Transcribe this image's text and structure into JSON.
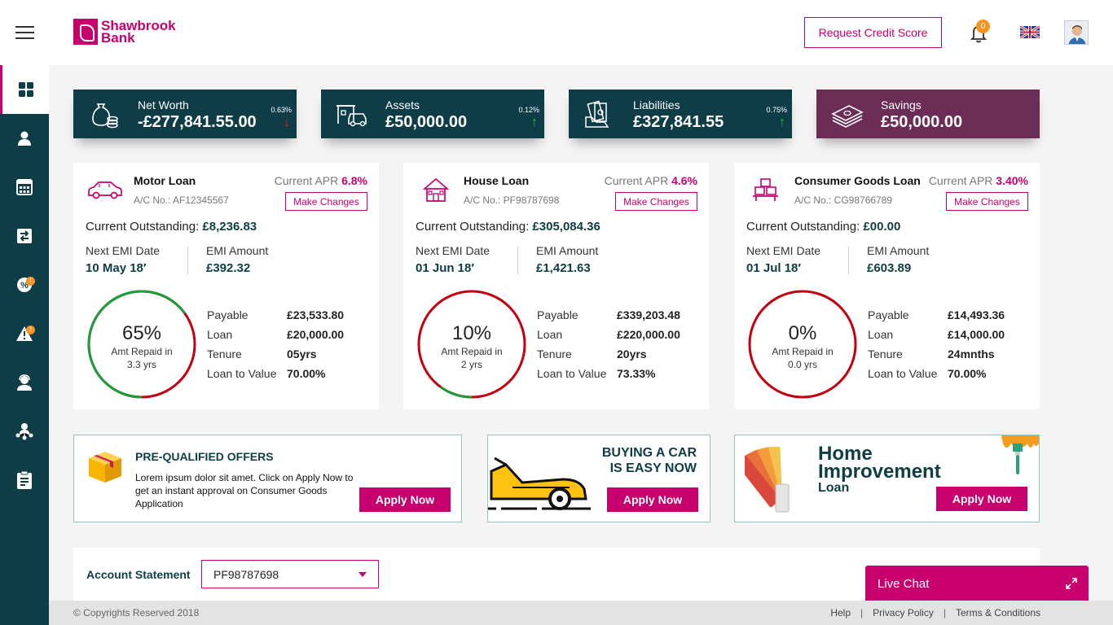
{
  "header": {
    "logo_line1": "Shawbrook",
    "logo_line2": "Bank",
    "request_credit_score": "Request Credit Score",
    "notification_count": "0"
  },
  "sidebar": {
    "items": [
      {
        "icon": "dashboard-icon"
      },
      {
        "icon": "user-icon"
      },
      {
        "icon": "calculator-icon"
      },
      {
        "icon": "transfer-icon"
      },
      {
        "icon": "offers-icon",
        "badge": "1"
      },
      {
        "icon": "alert-icon",
        "badge": "2"
      },
      {
        "icon": "support-icon"
      },
      {
        "icon": "network-icon"
      },
      {
        "icon": "clipboard-icon"
      }
    ]
  },
  "summary": [
    {
      "label": "Net Worth",
      "value": "-£277,841.55.00",
      "pct": "0.63%",
      "trend": "down"
    },
    {
      "label": "Assets",
      "value": "£50,000.00",
      "pct": "0.12%",
      "trend": "up"
    },
    {
      "label": "Liabilities",
      "value": "£327,841.55",
      "pct": "0.75%",
      "trend": "up"
    },
    {
      "label": "Savings",
      "value": "£50,000.00"
    }
  ],
  "loans": [
    {
      "title": "Motor Loan",
      "apr_label": "Current APR",
      "apr": "6.8%",
      "acno": "A/C No.: AF12345567",
      "make_changes": "Make Changes",
      "outstanding_label": "Current Outstanding:",
      "outstanding": "£8,236.83",
      "emi_date_label": "Next EMI Date",
      "emi_date": "10 May 18′",
      "emi_amount_label": "EMI Amount",
      "emi_amount": "£392.32",
      "pct_text": "65%",
      "repaid_label": "Amt Repaid in",
      "repaid_years": "3.3 yrs",
      "repaid_fraction": 0.65,
      "details": [
        {
          "label": "Payable",
          "value": "£23,533.80"
        },
        {
          "label": "Loan",
          "value": "£20,000.00"
        },
        {
          "label": "Tenure",
          "value": "05yrs"
        },
        {
          "label": "Loan to Value",
          "value": "70.00%"
        }
      ]
    },
    {
      "title": "House Loan",
      "apr_label": "Current APR",
      "apr": "4.6%",
      "acno": "A/C No.: PF98787698",
      "make_changes": "Make Changes",
      "outstanding_label": "Current Outstanding:",
      "outstanding": "£305,084.36",
      "emi_date_label": "Next EMI Date",
      "emi_date": "01 Jun 18′",
      "emi_amount_label": "EMI Amount",
      "emi_amount": "£1,421.63",
      "pct_text": "10%",
      "repaid_label": "Amt Repaid in",
      "repaid_years": "2 yrs",
      "repaid_fraction": 0.1,
      "details": [
        {
          "label": "Payable",
          "value": "£339,203.48"
        },
        {
          "label": "Loan",
          "value": "£220,000.00"
        },
        {
          "label": "Tenure",
          "value": "20yrs"
        },
        {
          "label": "Loan to Value",
          "value": "73.33%"
        }
      ]
    },
    {
      "title": "Consumer Goods Loan",
      "apr_label": "Current APR",
      "apr": "3.40%",
      "acno": "A/C No.: CG98766789",
      "make_changes": "Make Changes",
      "outstanding_label": "Current Outstanding:",
      "outstanding": "£00.00",
      "emi_date_label": "Next EMI Date",
      "emi_date": "01 Jul 18′",
      "emi_amount_label": "EMI Amount",
      "emi_amount": "£603.89",
      "pct_text": "0%",
      "repaid_label": "Amt Repaid in",
      "repaid_years": "0.0 yrs",
      "repaid_fraction": 0,
      "details": [
        {
          "label": "Payable",
          "value": "£14,493.36"
        },
        {
          "label": "Loan",
          "value": "£14,000.00"
        },
        {
          "label": "Tenure",
          "value": "24mnths"
        },
        {
          "label": "Loan to Value",
          "value": "70.00%"
        }
      ]
    }
  ],
  "promos": {
    "offers_title": "PRE-QUALIFIED OFFERS",
    "offers_text": "Lorem ipsum dolor sit amet. Click on Apply Now to get an instant approval on Consumer Goods Application",
    "car_line1": "BUYING A CAR",
    "car_line2": "IS EASY NOW",
    "home_line1": "Home",
    "home_line2": "Improvement",
    "home_line3": "Loan",
    "apply_label": "Apply Now"
  },
  "statement": {
    "label": "Account Statement",
    "selected": "PF98787698"
  },
  "footer": {
    "copyright": "© Copyrights Reserved 2018",
    "help": "Help",
    "privacy": "Privacy Policy",
    "terms": "Terms & Conditions"
  },
  "live_chat": "Live Chat",
  "colors": {
    "brand": "#c8006e",
    "navy": "#0f3d47",
    "savings": "#6b2c55",
    "gauge_green": "#1a9e3a",
    "gauge_red": "#c40010"
  }
}
